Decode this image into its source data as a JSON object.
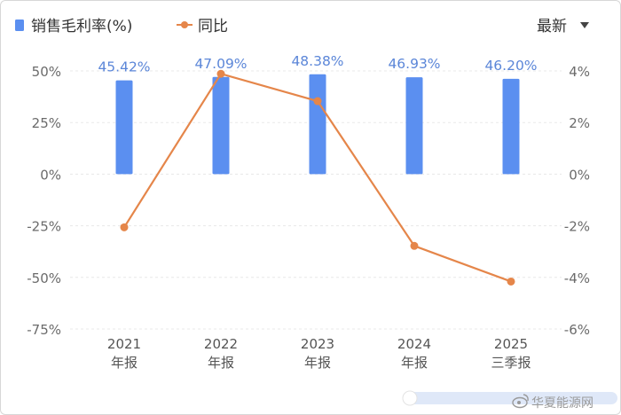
{
  "legend": {
    "bar_series_label": "销售毛利率(%)",
    "line_series_label": "同比"
  },
  "menu": {
    "label": "最新"
  },
  "watermark": {
    "text": "华夏能源网"
  },
  "colors": {
    "bar": "#5b8ff0",
    "line": "#e5864a",
    "bar_label": "#5b86d8",
    "grid": "#e8e8e8"
  },
  "chart_data": {
    "type": "bar+line",
    "categories": [
      [
        "2021",
        "年报"
      ],
      [
        "2022",
        "年报"
      ],
      [
        "2023",
        "年报"
      ],
      [
        "2024",
        "年报"
      ],
      [
        "2025",
        "三季报"
      ]
    ],
    "series": [
      {
        "name": "销售毛利率(%)",
        "type": "bar",
        "axis": "left",
        "values": [
          45.42,
          47.09,
          48.38,
          46.93,
          46.2
        ],
        "labels": [
          "45.42%",
          "47.09%",
          "48.38%",
          "46.93%",
          "46.20%"
        ]
      },
      {
        "name": "同比",
        "type": "line",
        "axis": "right",
        "values": [
          -2.06,
          3.89,
          2.83,
          -2.78,
          -4.16
        ]
      }
    ],
    "y_left": {
      "ylim": [
        -75,
        50
      ],
      "ticks": [
        50,
        25,
        0,
        -25,
        -50,
        -75
      ],
      "tick_labels": [
        "50%",
        "25%",
        "0%",
        "-25%",
        "-50%",
        "-75%"
      ]
    },
    "y_right": {
      "ylim": [
        -6,
        4
      ],
      "ticks": [
        4,
        2,
        0,
        -2,
        -4,
        -6
      ],
      "tick_labels": [
        "4%",
        "2%",
        "0%",
        "-2%",
        "-4%",
        "-6%"
      ]
    },
    "grid": true
  }
}
